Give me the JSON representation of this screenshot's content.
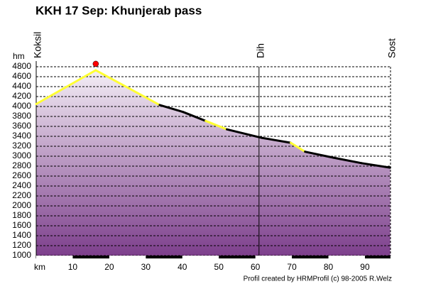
{
  "chart_data": {
    "type": "area-line",
    "title": "KKH 17 Sep: Khunjerab pass",
    "y_unit": "hm",
    "x_unit": "km",
    "footer": "Profil created by HRMProfil (c) 98-2005 R.Welz",
    "x": [
      0,
      16.3,
      33.8,
      40.2,
      46.4,
      52.2,
      61.7,
      69.7,
      73.6,
      81.4,
      89.1,
      96.9
    ],
    "values": [
      4050,
      4730,
      4030,
      3890,
      3710,
      3540,
      3370,
      3270,
      3090,
      2970,
      2860,
      2770
    ],
    "segment_colors": [
      "#ffff33",
      "#ffff33",
      "#000000",
      "#000000",
      "#ffff33",
      "#000000",
      "#000000",
      "#ffff33",
      "#000000",
      "#000000",
      "#000000"
    ],
    "peak_color": "#ff0000",
    "fill_colors": [
      "#f4eef6",
      "#7d3f8c"
    ],
    "places": [
      {
        "name": "Koksil",
        "km": 0
      },
      {
        "name": "Dih",
        "km": 61
      },
      {
        "name": "Sost",
        "km": 97
      }
    ],
    "xlim": [
      0,
      97
    ],
    "ylim": [
      1000,
      4800
    ],
    "xticks": [
      10,
      20,
      30,
      40,
      50,
      60,
      70,
      80,
      90
    ],
    "yticks": [
      1000,
      1200,
      1400,
      1600,
      1800,
      2000,
      2200,
      2400,
      2600,
      2800,
      3000,
      3200,
      3400,
      3600,
      3800,
      4000,
      4200,
      4400,
      4600,
      4800
    ],
    "grid": true
  }
}
